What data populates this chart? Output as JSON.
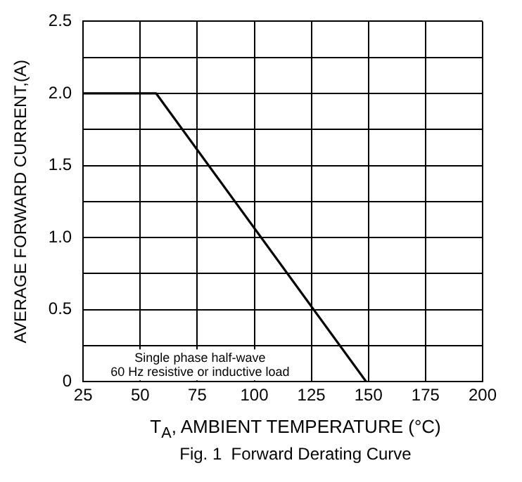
{
  "chart_data": {
    "type": "line",
    "xlabel": "T$_{A}$, AMBIENT TEMPERATURE (°C)",
    "ylabel": "AVERAGE FORWARD CURRENT,(A)",
    "title": "Fig. 1  Forward Derating Curve",
    "annotations": [
      "Single phase half-wave",
      "60 Hz resistive or inductive load"
    ],
    "series": [
      {
        "color": "#000000",
        "x": [
          25,
          57,
          149
        ],
        "values": [
          2.0,
          2.0,
          0
        ]
      }
    ],
    "xlim": [
      25,
      200
    ],
    "xticks": [
      25,
      50,
      75,
      100,
      125,
      150,
      175,
      200
    ],
    "ylim": [
      0,
      2.5
    ],
    "yticks": [
      {
        "value": 0,
        "label": "0"
      },
      {
        "value": 0.25,
        "label": null
      },
      {
        "value": 0.5,
        "label": "0.5"
      },
      {
        "value": 0.75,
        "label": null
      },
      {
        "value": 1.0,
        "label": "1.0"
      },
      {
        "value": 1.25,
        "label": null
      },
      {
        "value": 1.5,
        "label": "1.5"
      },
      {
        "value": 1.75,
        "label": null
      },
      {
        "value": 2.0,
        "label": "2.0"
      },
      {
        "value": 2.25,
        "label": null
      },
      {
        "value": 2.5,
        "label": "2.5"
      }
    ],
    "grid": true,
    "legend": false,
    "marker": "none",
    "line_style": "solid"
  }
}
